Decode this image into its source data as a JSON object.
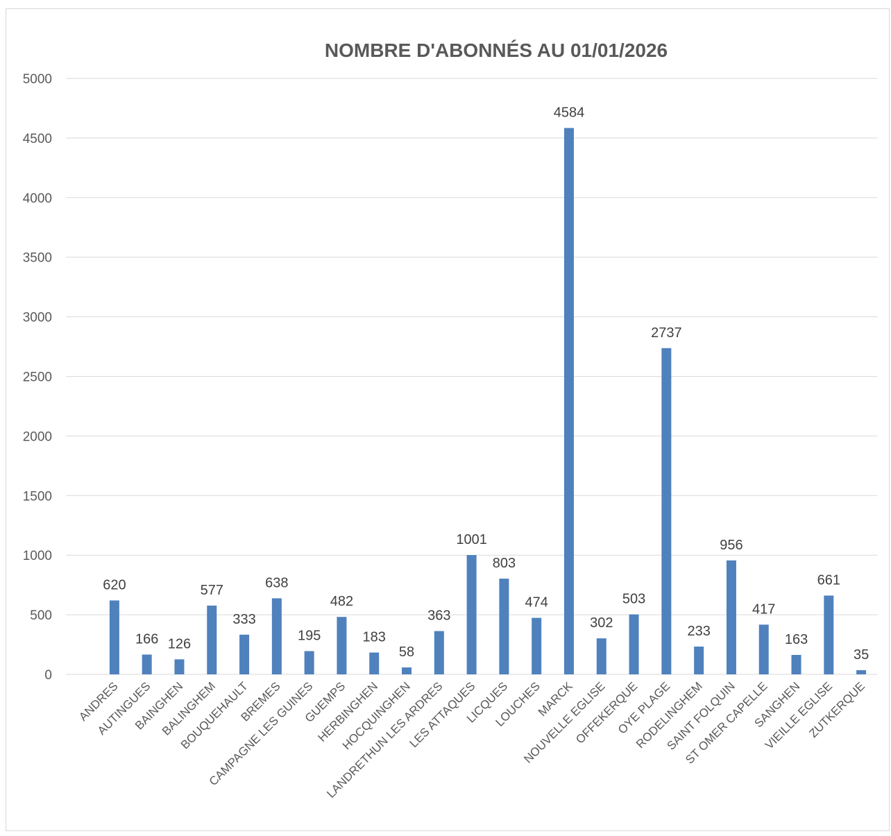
{
  "chart_data": {
    "type": "bar",
    "title": "NOMBRE D'ABONNÉS AU 01/01/2026",
    "categories": [
      "ANDRES",
      "AUTINGUES",
      "BAINGHEN",
      "BALINGHEM",
      "BOUQUEHAULT",
      "BREMES",
      "CAMPAGNE LES GUINES",
      "GUEMPS",
      "HERBINGHEN",
      "HOCQUINGHEN",
      "LANDRETHUN LES ARDRES",
      "LES ATTAQUES",
      "LICQUES",
      "LOUCHES",
      "MARCK",
      "NOUVELLE EGLISE",
      "OFFEKERQUE",
      "OYE PLAGE",
      "RODELINGHEM",
      "SAINT FOLQUIN",
      "ST OMER CAPELLE",
      "SANGHEN",
      "VIEILLE EGLISE",
      "ZUTKERQUE"
    ],
    "values": [
      620,
      166,
      126,
      577,
      333,
      638,
      195,
      482,
      183,
      58,
      363,
      1001,
      803,
      474,
      4584,
      302,
      503,
      2737,
      233,
      956,
      417,
      163,
      661,
      35
    ],
    "color": "#4f81bd",
    "ylim": [
      0,
      5000
    ],
    "yticks": [
      0,
      500,
      1000,
      1500,
      2000,
      2500,
      3000,
      3500,
      4000,
      4500,
      5000
    ],
    "grid": true
  }
}
